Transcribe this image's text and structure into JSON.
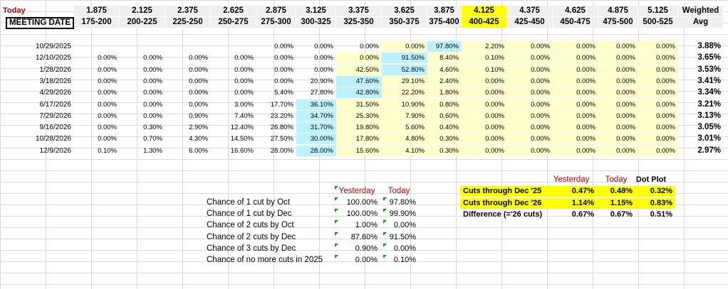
{
  "header": {
    "today_label": "Today",
    "meeting_date_label": "MEETING DATE",
    "weighted_label": "Weighted",
    "avg_label": "Avg",
    "midpoints": [
      "1.875",
      "2.125",
      "2.375",
      "2.625",
      "2.875",
      "3.125",
      "3.375",
      "3.625",
      "3.875",
      "4.125",
      "4.375",
      "4.625",
      "4.875",
      "5.125"
    ],
    "ranges": [
      "175-200",
      "200-225",
      "225-250",
      "250-275",
      "275-300",
      "300-325",
      "325-350",
      "350-375",
      "375-400",
      "400-425",
      "425-450",
      "450-475",
      "475-500",
      "500-525"
    ]
  },
  "rows": [
    {
      "date": "10/29/2025",
      "cells": [
        "",
        "",
        "",
        "",
        "0.00%",
        "0.00%",
        "0.00%",
        "0.00%",
        "97.80%",
        "2.20%",
        "0.00%",
        "0.00%",
        "0.00%",
        "0.00%"
      ],
      "avg": "3.88%"
    },
    {
      "date": "12/10/2025",
      "cells": [
        "0.00%",
        "0.00%",
        "0.00%",
        "0.00%",
        "0.00%",
        "0.00%",
        "0.00%",
        "91.50%",
        "8.40%",
        "0.10%",
        "0.00%",
        "0.00%",
        "0.00%",
        "0.00%"
      ],
      "avg": "3.65%"
    },
    {
      "date": "1/28/2026",
      "cells": [
        "0.00%",
        "0.00%",
        "0.00%",
        "0.00%",
        "0.00%",
        "0.00%",
        "42.50%",
        "52.80%",
        "4.60%",
        "0.10%",
        "0.00%",
        "0.00%",
        "0.00%",
        "0.00%"
      ],
      "avg": "3.53%"
    },
    {
      "date": "3/18/2026",
      "cells": [
        "0.00%",
        "0.00%",
        "0.00%",
        "0.00%",
        "0.00%",
        "20.90%",
        "47.60%",
        "29.10%",
        "2.40%",
        "0.00%",
        "0.00%",
        "0.00%",
        "0.00%",
        "0.00%"
      ],
      "avg": "3.41%"
    },
    {
      "date": "4/29/2026",
      "cells": [
        "0.00%",
        "0.00%",
        "0.00%",
        "0.00%",
        "5.40%",
        "27.80%",
        "42.80%",
        "22.20%",
        "1.80%",
        "0.00%",
        "0.00%",
        "0.00%",
        "0.00%",
        "0.00%"
      ],
      "avg": "3.34%"
    },
    {
      "date": "6/17/2026",
      "cells": [
        "0.00%",
        "0.00%",
        "0.00%",
        "3.00%",
        "17.70%",
        "36.10%",
        "31.50%",
        "10.90%",
        "0.80%",
        "0.00%",
        "0.00%",
        "0.00%",
        "0.00%",
        "0.00%"
      ],
      "avg": "3.21%"
    },
    {
      "date": "7/29/2026",
      "cells": [
        "0.00%",
        "0.00%",
        "0.90%",
        "7.40%",
        "23.20%",
        "34.70%",
        "25.30%",
        "7.90%",
        "0.60%",
        "0.00%",
        "0.00%",
        "0.00%",
        "0.00%",
        "0.00%"
      ],
      "avg": "3.13%"
    },
    {
      "date": "9/16/2026",
      "cells": [
        "0.00%",
        "0.30%",
        "2.90%",
        "12.40%",
        "26.80%",
        "31.70%",
        "19.80%",
        "5.60%",
        "0.40%",
        "0.00%",
        "0.00%",
        "0.00%",
        "0.00%",
        "0.00%"
      ],
      "avg": "3.05%"
    },
    {
      "date": "10/28/2026",
      "cells": [
        "0.00%",
        "0.70%",
        "4.30%",
        "14.50%",
        "27.50%",
        "30.00%",
        "17.80%",
        "4.80%",
        "0.30%",
        "0.00%",
        "0.00%",
        "0.00%",
        "0.00%",
        "0.00%"
      ],
      "avg": "3.01%"
    },
    {
      "date": "12/9/2026",
      "cells": [
        "0.10%",
        "1.30%",
        "6.00%",
        "16.60%",
        "28.00%",
        "28.00%",
        "15.60%",
        "4.10%",
        "0.30%",
        "0.00%",
        "0.00%",
        "0.00%",
        "0.00%",
        "0.00%"
      ],
      "avg": "2.97%"
    }
  ],
  "blue_cells": [
    [
      0,
      8
    ],
    [
      1,
      7
    ],
    [
      2,
      7
    ],
    [
      3,
      6
    ],
    [
      4,
      6
    ],
    [
      5,
      5
    ],
    [
      6,
      5
    ],
    [
      7,
      5
    ],
    [
      8,
      5
    ],
    [
      9,
      5
    ]
  ],
  "chances": {
    "yesterday_label": "Yesterday",
    "today_label": "Today",
    "items": [
      {
        "label": "Chance of 1 cut by Oct",
        "yesterday": "100.00%",
        "today": "97.80%"
      },
      {
        "label": "Chance of 1 cut by Dec",
        "yesterday": "100.00%",
        "today": "99.90%"
      },
      {
        "label": "Chance of 2 cuts by Oct",
        "yesterday": "1.00%",
        "today": "0.00%"
      },
      {
        "label": "Chance of 2 cuts by Dec",
        "yesterday": "87.60%",
        "today": "91.50%"
      },
      {
        "label": "Chance of 3 cuts by Dec",
        "yesterday": "0.90%",
        "today": "0.00%"
      },
      {
        "label": "Chance of no more cuts in 2025",
        "yesterday": "0.00%",
        "today": "0.10%"
      }
    ]
  },
  "cuts": {
    "yesterday_label": "Yesterday",
    "today_label": "Today",
    "dotplot_label": "Dot Plot",
    "items": [
      {
        "label": "Cuts through Dec '25",
        "yesterday": "0.47%",
        "today": "0.48%",
        "dotplot": "0.32%",
        "highlight": true
      },
      {
        "label": "Cuts through Dec '26",
        "yesterday": "1.14%",
        "today": "1.15%",
        "dotplot": "0.83%",
        "highlight": true
      },
      {
        "label": "Difference (='26 cuts)",
        "yesterday": "0.67%",
        "today": "0.67%",
        "dotplot": "0.51%",
        "highlight": false
      }
    ]
  },
  "colors": {
    "highlight": "#ffff00",
    "pale_yellow": "#ffffcc",
    "light_blue": "#bdf1ff",
    "red": "#c00000",
    "grid": "#d9d9d9"
  }
}
